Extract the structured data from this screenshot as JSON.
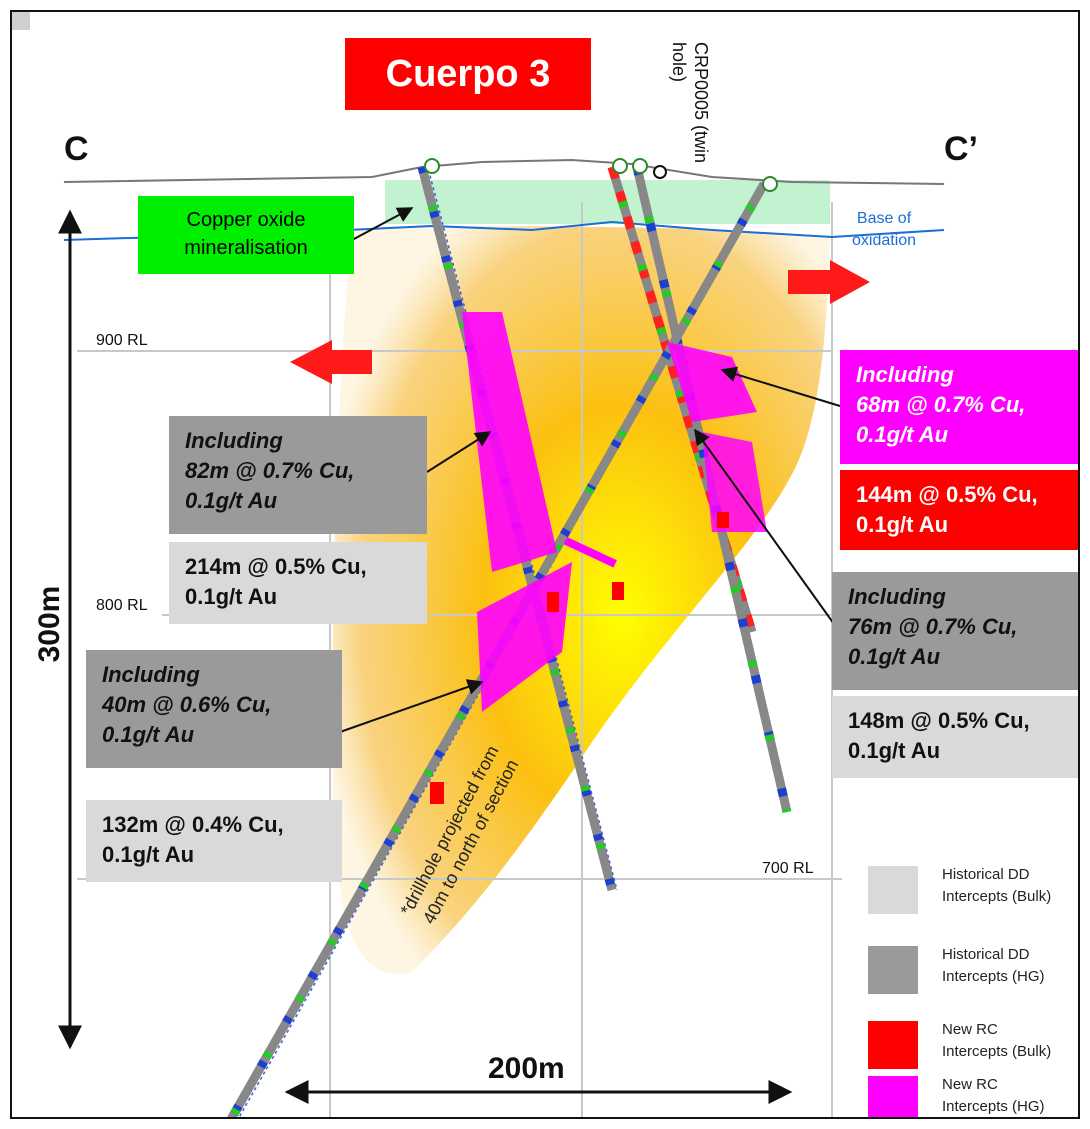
{
  "title": "Cuerpo 3",
  "section": {
    "left": "C",
    "right": "C’"
  },
  "twin_hole": "CRP0005 (twin hole)",
  "labels": {
    "copper_oxide": [
      "Copper oxide",
      "mineralisation"
    ],
    "base_oxidation": [
      "Base of",
      "oxidation"
    ],
    "rl_900": "900 RL",
    "rl_800": "800 RL",
    "rl_700": "700 RL",
    "vertical_scale": "300m",
    "horizontal_scale": "200m",
    "projected_note": [
      "*drillhole projected from",
      "40m to north of section"
    ]
  },
  "intercepts": {
    "left_upper_hg": [
      "Including",
      "82m @ 0.7% Cu,",
      "0.1g/t Au"
    ],
    "left_upper_bulk": [
      "214m @ 0.5% Cu,",
      "0.1g/t Au"
    ],
    "left_lower_hg": [
      "Including",
      "40m @ 0.6% Cu,",
      "0.1g/t Au"
    ],
    "left_lower_bulk": [
      "132m @ 0.4% Cu,",
      "0.1g/t Au"
    ],
    "right_new_hg": [
      "Including",
      "68m @ 0.7% Cu,",
      "0.1g/t Au"
    ],
    "right_new_bulk": [
      "144m @ 0.5% Cu,",
      "0.1g/t Au"
    ],
    "right_hist_hg": [
      "Including",
      "76m @ 0.7% Cu,",
      "0.1g/t Au"
    ],
    "right_hist_bulk": [
      "148m @ 0.5% Cu,",
      "0.1g/t Au"
    ]
  },
  "legend": [
    {
      "lines": [
        "Historical DD",
        "Intercepts (Bulk)"
      ],
      "color": "#d9d9d9"
    },
    {
      "lines": [
        "Historical DD",
        "Intercepts (HG)"
      ],
      "color": "#9a9a9a"
    },
    {
      "lines": [
        "New RC",
        "Intercepts (Bulk)"
      ],
      "color": "#ff0000"
    },
    {
      "lines": [
        "New RC",
        "Intercepts (HG)"
      ],
      "color": "#ff00ff"
    }
  ],
  "colors": {
    "oxide_zone": "#b8f0c8",
    "oxidation_line": "#1a6fd6",
    "title_red": "#ff0000",
    "ore_core": "#ffff00",
    "ore_edge": "#f0a020"
  }
}
